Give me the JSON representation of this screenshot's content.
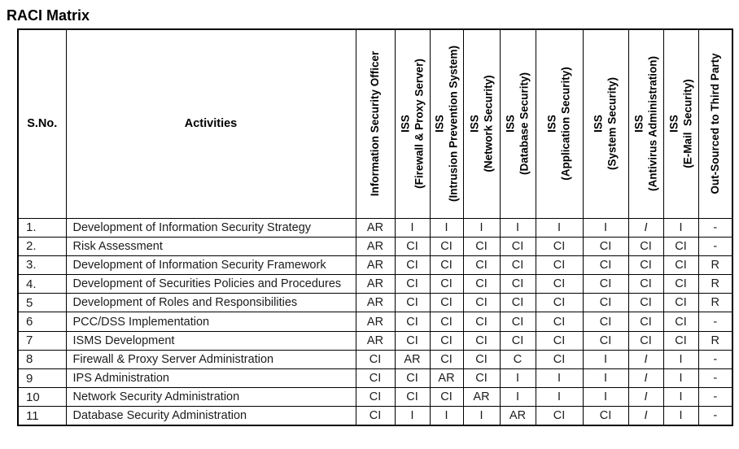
{
  "page": {
    "title": "RACI Matrix"
  },
  "table": {
    "sno_header": "S.No.",
    "activities_header": "Activities",
    "role_columns": [
      {
        "line1": "Information Security Officer",
        "line2": ""
      },
      {
        "line1": "ISS",
        "line2": "(Firewall & Proxy Server)"
      },
      {
        "line1": "ISS",
        "line2": "(Intrusion Prevention System)"
      },
      {
        "line1": "ISS",
        "line2": "(Network Security)"
      },
      {
        "line1": "ISS",
        "line2": "(Database Security)"
      },
      {
        "line1": "ISS",
        "line2": "(Application Security)"
      },
      {
        "line1": "ISS",
        "line2": "(System Security)"
      },
      {
        "line1": "ISS",
        "line2": "(Antivirus Administration)"
      },
      {
        "line1": "ISS",
        "line2": "(E-Mail  Security)"
      },
      {
        "line1": "Out-Sourced to Third Party",
        "line2": ""
      }
    ],
    "rows": [
      {
        "sno": "1.",
        "activity": "Development of Information Security Strategy",
        "values": [
          "AR",
          "I",
          "I",
          "I",
          "I",
          "I",
          "I",
          {
            "t": "I",
            "italic": true
          },
          "I",
          "-"
        ]
      },
      {
        "sno": "2.",
        "activity": "Risk Assessment",
        "values": [
          "AR",
          "CI",
          "CI",
          "CI",
          "CI",
          "CI",
          "CI",
          "CI",
          "CI",
          "-"
        ]
      },
      {
        "sno": "3.",
        "activity": "Development of Information Security Framework",
        "values": [
          "AR",
          "CI",
          "CI",
          "CI",
          "CI",
          "CI",
          "CI",
          "CI",
          "CI",
          "R"
        ]
      },
      {
        "sno": "4.",
        "activity": "Development of Securities Policies and Procedures",
        "values": [
          "AR",
          "CI",
          "CI",
          "CI",
          "CI",
          "CI",
          "CI",
          "CI",
          "CI",
          "R"
        ]
      },
      {
        "sno": "5",
        "activity": "Development of Roles and Responsibilities",
        "values": [
          "AR",
          "CI",
          "CI",
          "CI",
          "CI",
          "CI",
          "CI",
          "CI",
          "CI",
          "R"
        ]
      },
      {
        "sno": "6",
        "activity": "PCC/DSS Implementation",
        "values": [
          "AR",
          "CI",
          "CI",
          "CI",
          "CI",
          "CI",
          "CI",
          "CI",
          "CI",
          "-"
        ]
      },
      {
        "sno": "7",
        "activity": "ISMS Development",
        "values": [
          "AR",
          "CI",
          "CI",
          "CI",
          "CI",
          "CI",
          "CI",
          "CI",
          "CI",
          "R"
        ]
      },
      {
        "sno": "8",
        "activity": "Firewall & Proxy Server Administration",
        "values": [
          "CI",
          "AR",
          "CI",
          "CI",
          "C",
          "CI",
          "I",
          {
            "t": "I",
            "italic": true
          },
          "I",
          "-"
        ]
      },
      {
        "sno": "9",
        "activity": "IPS Administration",
        "values": [
          "CI",
          "CI",
          "AR",
          "CI",
          "I",
          "I",
          "I",
          {
            "t": "I",
            "italic": true
          },
          "I",
          "-"
        ]
      },
      {
        "sno": "10",
        "activity": "Network Security Administration",
        "values": [
          "CI",
          "CI",
          "CI",
          "AR",
          "I",
          "I",
          "I",
          {
            "t": "I",
            "italic": true
          },
          "I",
          "-"
        ]
      },
      {
        "sno": "11",
        "activity": "Database Security Administration",
        "values": [
          "CI",
          "I",
          "I",
          "I",
          "AR",
          "CI",
          "CI",
          {
            "t": "I",
            "italic": true
          },
          "I",
          "-"
        ]
      }
    ]
  }
}
